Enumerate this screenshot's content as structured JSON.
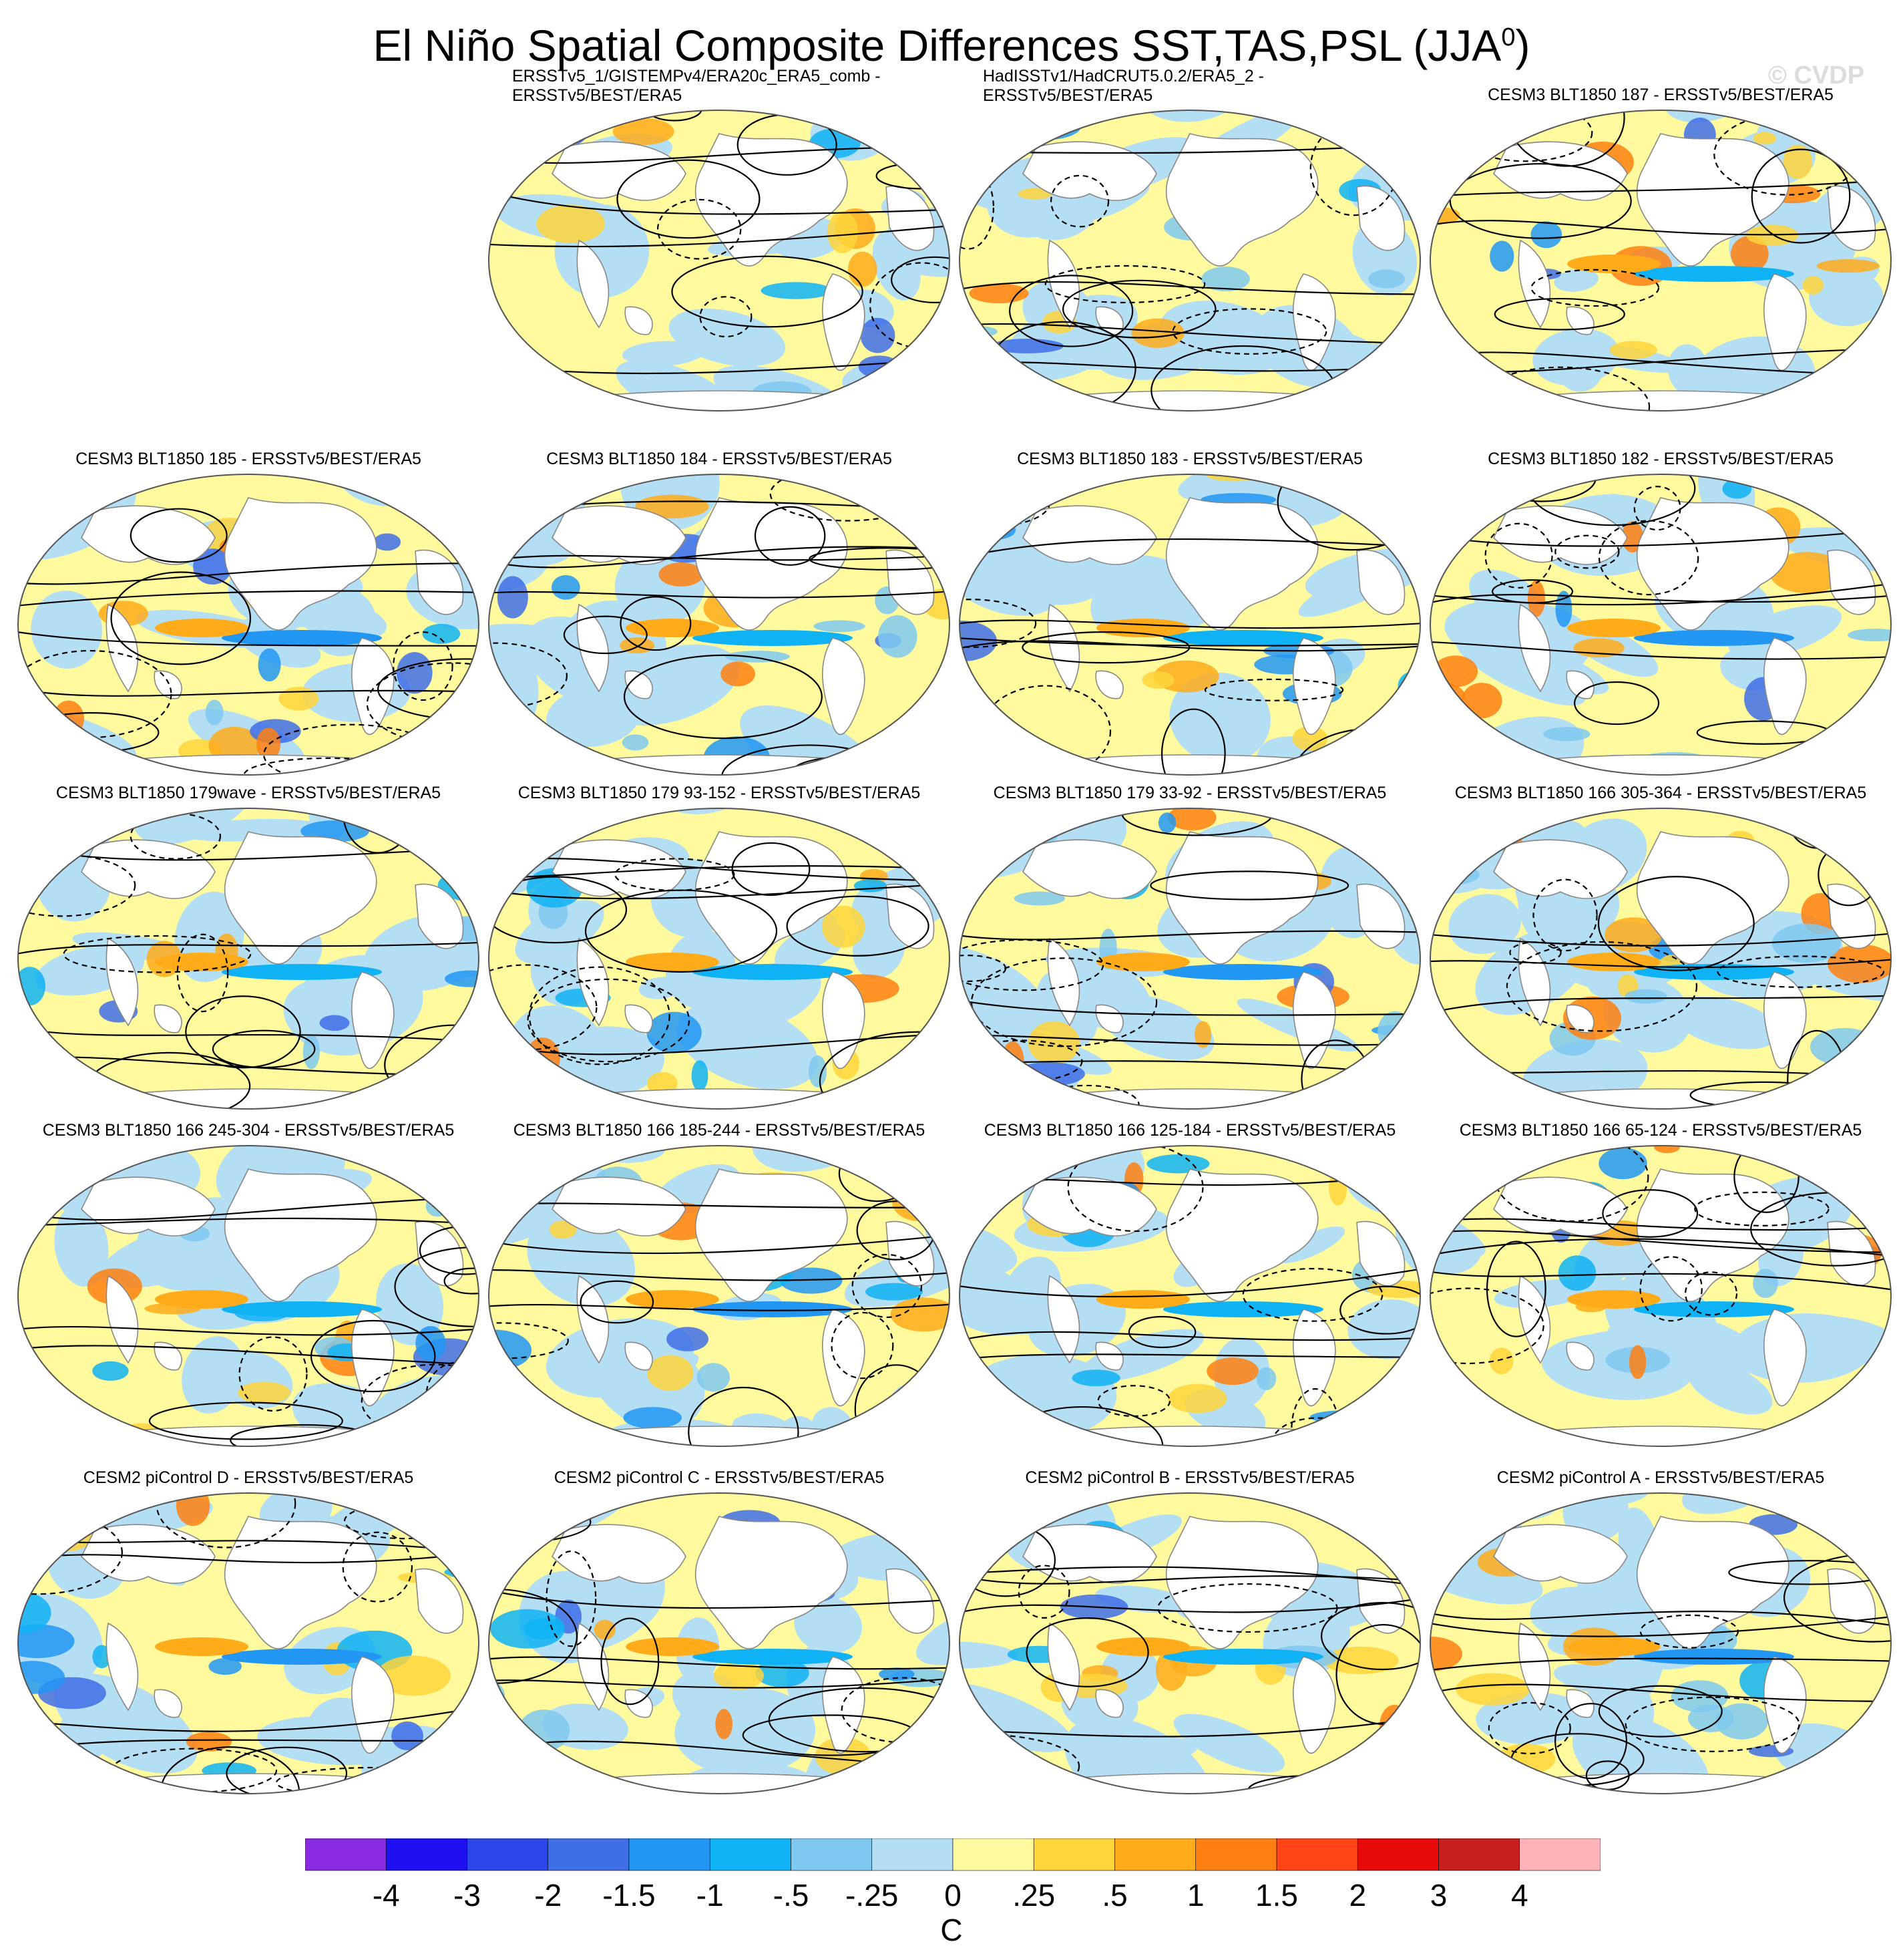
{
  "title": "El Niño Spatial Composite Differences SST,TAS,PSL (JJA",
  "title_superscript": "0",
  "title_close": ")",
  "watermark": "© CVDP",
  "panels": [
    {
      "lines": [
        "ERSSTv5_1/GISTEMPv4/ERA20c_ERA5_comb -",
        "ERSSTv5/BEST/ERA5"
      ],
      "seed": 11
    },
    {
      "lines": [
        "HadISSTv1/HadCRUT5.0.2/ERA5_2 -",
        "ERSSTv5/BEST/ERA5"
      ],
      "seed": 23
    },
    {
      "lines": [
        "CESM3 BLT1850 187 - ERSSTv5/BEST/ERA5"
      ],
      "seed": 37
    },
    {
      "lines": [
        "CESM3 BLT1850 185 - ERSSTv5/BEST/ERA5"
      ],
      "seed": 41
    },
    {
      "lines": [
        "CESM3 BLT1850 184 - ERSSTv5/BEST/ERA5"
      ],
      "seed": 53
    },
    {
      "lines": [
        "CESM3 BLT1850 183 - ERSSTv5/BEST/ERA5"
      ],
      "seed": 67
    },
    {
      "lines": [
        "CESM3 BLT1850 182 - ERSSTv5/BEST/ERA5"
      ],
      "seed": 71
    },
    {
      "lines": [
        "CESM3 BLT1850 179wave - ERSSTv5/BEST/ERA5"
      ],
      "seed": 83
    },
    {
      "lines": [
        "CESM3 BLT1850 179 93-152 - ERSSTv5/BEST/ERA5"
      ],
      "seed": 97
    },
    {
      "lines": [
        "CESM3 BLT1850 179 33-92 - ERSSTv5/BEST/ERA5"
      ],
      "seed": 101
    },
    {
      "lines": [
        "CESM3 BLT1850 166 305-364 - ERSSTv5/BEST/ERA5"
      ],
      "seed": 113
    },
    {
      "lines": [
        "CESM3 BLT1850 166 245-304 - ERSSTv5/BEST/ERA5"
      ],
      "seed": 127
    },
    {
      "lines": [
        "CESM3 BLT1850 166 185-244 - ERSSTv5/BEST/ERA5"
      ],
      "seed": 131
    },
    {
      "lines": [
        "CESM3 BLT1850 166 125-184 - ERSSTv5/BEST/ERA5"
      ],
      "seed": 149
    },
    {
      "lines": [
        "CESM3 BLT1850 166 65-124 - ERSSTv5/BEST/ERA5"
      ],
      "seed": 157
    },
    {
      "lines": [
        "CESM2 piControl D - ERSSTv5/BEST/ERA5"
      ],
      "seed": 163
    },
    {
      "lines": [
        "CESM2 piControl C - ERSSTv5/BEST/ERA5"
      ],
      "seed": 173
    },
    {
      "lines": [
        "CESM2 piControl B - ERSSTv5/BEST/ERA5"
      ],
      "seed": 181
    },
    {
      "lines": [
        "CESM2 piControl A - ERSSTv5/BEST/ERA5"
      ],
      "seed": 191
    }
  ],
  "colorbar": {
    "colors": [
      "#8a2be2",
      "#1e10f0",
      "#2a45e8",
      "#3f6fe6",
      "#2196f3",
      "#0fb3f5",
      "#7fc8f0",
      "#b3def3",
      "#fffa9e",
      "#ffd53a",
      "#ffab1a",
      "#ff8010",
      "#ff4515",
      "#e60a0a",
      "#c81e1e",
      "#ffb3b8"
    ],
    "labels": [
      "-4",
      "-3",
      "-2",
      "-1.5",
      "-1",
      "-.5",
      "-.25",
      "0",
      ".25",
      ".5",
      "1",
      "1.5",
      "2",
      "3",
      "4"
    ],
    "units": "C"
  },
  "land_color": "#ffffff",
  "ocean_light_blue": "#b3def3",
  "ocean_light_yellow": "#fffa9e"
}
